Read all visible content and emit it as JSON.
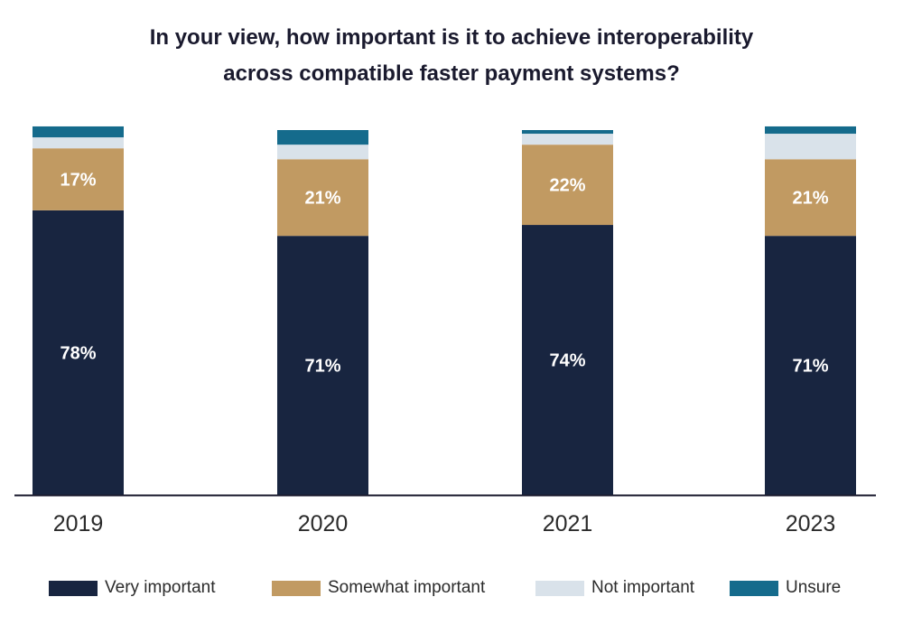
{
  "title": {
    "line1": "In your view, how important is it to achieve interoperability",
    "line2": "across compatible faster payment systems?"
  },
  "colors": {
    "very_important": "#182540",
    "somewhat_important": "#c19a62",
    "not_important": "#d9e2ea",
    "unsure": "#156b8c",
    "axis": "#1a1a2e"
  },
  "chart_data": {
    "type": "bar",
    "stacked": true,
    "orientation": "vertical",
    "title": "In your view, how important is it to achieve interoperability across compatible faster payment systems?",
    "categories": [
      "2019",
      "2020",
      "2021",
      "2023"
    ],
    "series": [
      {
        "name": "Very important",
        "values": [
          78,
          71,
          74,
          71
        ],
        "color": "#182540",
        "labels": [
          "78%",
          "71%",
          "74%",
          "71%"
        ]
      },
      {
        "name": "Somewhat important",
        "values": [
          17,
          21,
          22,
          21
        ],
        "color": "#c19a62",
        "labels": [
          "17%",
          "21%",
          "22%",
          "21%"
        ]
      },
      {
        "name": "Not important",
        "values": [
          3,
          4,
          3,
          7
        ],
        "color": "#d9e2ea",
        "labels": []
      },
      {
        "name": "Unsure",
        "values": [
          3,
          4,
          1,
          2
        ],
        "color": "#156b8c",
        "labels": []
      }
    ],
    "ylim": [
      0,
      100
    ],
    "grid": false,
    "legend_position": "bottom"
  }
}
